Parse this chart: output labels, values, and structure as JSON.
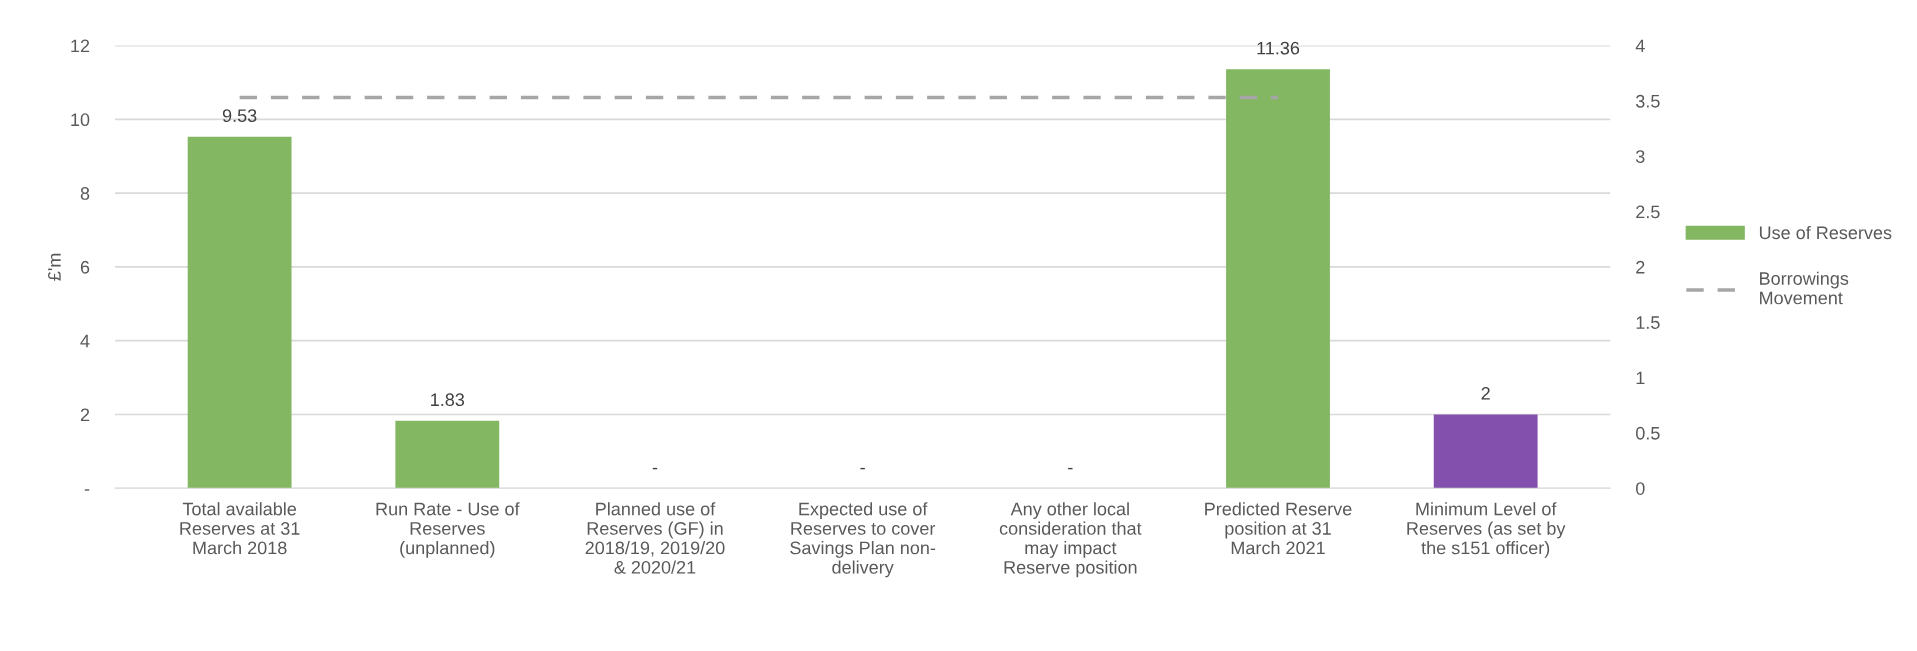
{
  "chart_data": {
    "type": "bar",
    "ylabel": "£'m",
    "categories": [
      "Total available\nReserves at 31\nMarch 2018",
      "Run Rate - Use of\nReserves\n(unplanned)",
      "Planned use of\nReserves (GF) in\n2018/19, 2019/20\n& 2020/21",
      "Expected use of\nReserves to cover\nSavings Plan non-\ndelivery",
      "Any other local\nconsideration that\nmay impact\nReserve position",
      "Predicted Reserve\nposition at 31\nMarch 2021",
      "Minimum Level of\nReserves (as set by\nthe s151 officer)"
    ],
    "series": [
      {
        "name": "Use of Reserves",
        "color": "#84b762",
        "colors": [
          "#84b762",
          "#84b762",
          "#84b762",
          "#84b762",
          "#84b762",
          "#84b762",
          "#8350ad"
        ],
        "values": [
          9.53,
          1.83,
          0,
          0,
          0,
          11.36,
          2
        ],
        "value_labels": [
          "9.53",
          "1.83",
          "-",
          "-",
          "-",
          "11.36",
          "2"
        ]
      },
      {
        "name": "Borrowings\nMovement",
        "type": "line",
        "axis": "y2",
        "color": "#a6a6a6",
        "line_style": "dashed",
        "values": [
          3.53,
          3.53,
          3.53,
          3.53,
          3.53,
          3.53,
          null
        ]
      }
    ],
    "ylim": [
      0,
      12
    ],
    "yticks": [
      {
        "value": 0,
        "label": "-"
      },
      2,
      4,
      6,
      8,
      10,
      12
    ],
    "y2lim": [
      0,
      4
    ],
    "y2ticks": [
      0,
      0.5,
      1,
      1.5,
      2,
      2.5,
      3,
      3.5,
      4
    ],
    "grid": "y",
    "legend": "right"
  }
}
